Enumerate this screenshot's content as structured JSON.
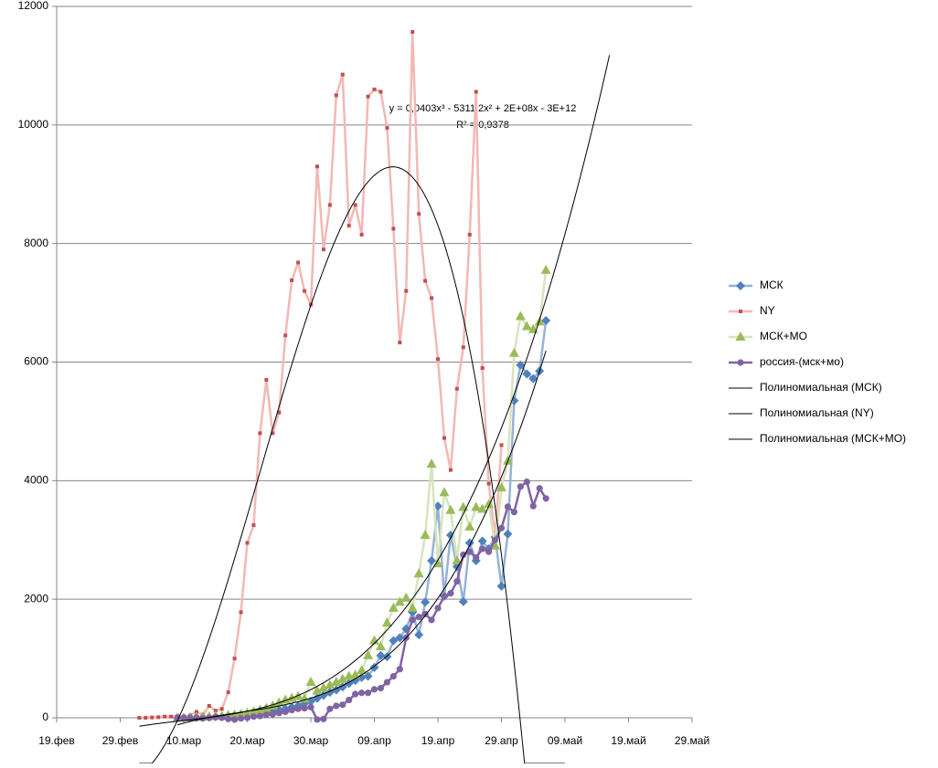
{
  "chart_data": {
    "type": "line",
    "xlim": [
      43880,
      43980
    ],
    "xticks": [
      {
        "value": 43880,
        "label": "19.фев"
      },
      {
        "value": 43890,
        "label": "29.фев"
      },
      {
        "value": 43900,
        "label": "10.мар"
      },
      {
        "value": 43910,
        "label": "20.мар"
      },
      {
        "value": 43920,
        "label": "30.мар"
      },
      {
        "value": 43930,
        "label": "09.апр"
      },
      {
        "value": 43940,
        "label": "19.апр"
      },
      {
        "value": 43950,
        "label": "29.апр"
      },
      {
        "value": 43960,
        "label": "09.май"
      },
      {
        "value": 43970,
        "label": "19.май"
      },
      {
        "value": 43980,
        "label": "29.май"
      }
    ],
    "ylim": [
      0,
      12000
    ],
    "yticks": [
      0,
      2000,
      4000,
      6000,
      8000,
      10000,
      12000
    ],
    "grid": true,
    "legend": "right",
    "annotations": [
      "y = 0,0403x³  - 5311,2x²  + 2E+08x  - 3E+12",
      "R² = 0,9378"
    ],
    "series": [
      {
        "name": "МСК",
        "color": "#4f81bd",
        "line_color": "#95b3d7",
        "marker": "diamond",
        "trendline": {
          "name": "Полиномиальная (МСК)",
          "order": 3,
          "backward": 0,
          "forward": 0
        },
        "x": [
          43899,
          43900,
          43901,
          43902,
          43903,
          43904,
          43905,
          43906,
          43907,
          43908,
          43909,
          43910,
          43911,
          43912,
          43913,
          43914,
          43915,
          43916,
          43917,
          43918,
          43919,
          43920,
          43921,
          43922,
          43923,
          43924,
          43925,
          43926,
          43927,
          43928,
          43929,
          43930,
          43931,
          43932,
          43933,
          43934,
          43935,
          43936,
          43937,
          43938,
          43939,
          43940,
          43941,
          43942,
          43943,
          43944,
          43945,
          43946,
          43947,
          43948,
          43949,
          43950,
          43951,
          43952,
          43953,
          43954,
          43955,
          43956,
          43957
        ],
        "values": [
          0,
          0,
          0,
          5,
          10,
          10,
          20,
          20,
          30,
          30,
          40,
          50,
          60,
          80,
          100,
          110,
          130,
          150,
          180,
          200,
          240,
          280,
          330,
          380,
          430,
          470,
          520,
          580,
          630,
          680,
          700,
          850,
          1050,
          1030,
          1300,
          1350,
          1500,
          1780,
          1400,
          1950,
          2650,
          3570,
          2050,
          3080,
          2550,
          1960,
          2950,
          2650,
          2980,
          2850,
          3050,
          2220,
          3100,
          5350,
          5950,
          5800,
          5720,
          5850,
          6700
        ]
      },
      {
        "name": "NY",
        "color": "#c0504d",
        "line_color": "#f2b8b5",
        "marker": "square",
        "trendline": {
          "name": "Полиномиальная (NY)",
          "order": 3,
          "backward": 0,
          "forward": 10
        },
        "x": [
          43893,
          43894,
          43895,
          43896,
          43897,
          43898,
          43899,
          43900,
          43901,
          43902,
          43903,
          43904,
          43905,
          43906,
          43907,
          43908,
          43909,
          43910,
          43911,
          43912,
          43913,
          43914,
          43915,
          43916,
          43917,
          43918,
          43919,
          43920,
          43921,
          43922,
          43923,
          43924,
          43925,
          43926,
          43927,
          43928,
          43929,
          43930,
          43931,
          43932,
          43933,
          43934,
          43935,
          43936,
          43937,
          43938,
          43939,
          43940,
          43941,
          43942,
          43943,
          43944,
          43945,
          43946,
          43947,
          43948,
          43949,
          43950
        ],
        "values": [
          0,
          0,
          5,
          10,
          20,
          20,
          30,
          20,
          40,
          100,
          50,
          200,
          120,
          150,
          430,
          1000,
          1780,
          2950,
          3250,
          4800,
          5700,
          4800,
          5150,
          6450,
          7380,
          7680,
          7200,
          6970,
          9300,
          7900,
          8650,
          10500,
          10850,
          8300,
          8650,
          8150,
          10480,
          10600,
          10560,
          9950,
          8250,
          6330,
          7200,
          11570,
          8500,
          7370,
          7080,
          6050,
          4720,
          4180,
          5550,
          6250,
          8150,
          10560,
          5900,
          3950,
          3050,
          4600
        ]
      },
      {
        "name": "МСК+МО",
        "color": "#9bbb59",
        "line_color": "#d7e4bd",
        "marker": "triangle",
        "trendline": {
          "name": "Полиномиальная (МСК+МО)",
          "order": 3,
          "backward": 6,
          "forward": 10
        },
        "x": [
          43899,
          43900,
          43901,
          43902,
          43903,
          43904,
          43905,
          43906,
          43907,
          43908,
          43909,
          43910,
          43911,
          43912,
          43913,
          43914,
          43915,
          43916,
          43917,
          43918,
          43919,
          43920,
          43921,
          43922,
          43923,
          43924,
          43925,
          43926,
          43927,
          43928,
          43929,
          43930,
          43931,
          43932,
          43933,
          43934,
          43935,
          43936,
          43937,
          43938,
          43939,
          43940,
          43941,
          43942,
          43943,
          43944,
          43945,
          43946,
          43947,
          43948,
          43949,
          43950,
          43951,
          43952,
          43953,
          43954,
          43955,
          43956,
          43957
        ],
        "values": [
          0,
          0,
          5,
          10,
          15,
          20,
          25,
          30,
          40,
          50,
          60,
          80,
          100,
          130,
          160,
          200,
          250,
          300,
          330,
          360,
          320,
          600,
          450,
          500,
          550,
          600,
          650,
          700,
          720,
          800,
          1050,
          1300,
          1200,
          1600,
          1850,
          1950,
          2020,
          1850,
          2430,
          3080,
          4280,
          2600,
          3800,
          3500,
          2650,
          3550,
          3220,
          3550,
          3520,
          3600,
          2900,
          3880,
          4330,
          6150,
          6770,
          6600,
          6550,
          6680,
          7550
        ]
      },
      {
        "name": "россия-(мск+мо)",
        "color": "#8064a2",
        "line_color": "#8064a2",
        "marker": "circle",
        "x": [
          43899,
          43900,
          43901,
          43902,
          43903,
          43904,
          43905,
          43906,
          43907,
          43908,
          43909,
          43910,
          43911,
          43912,
          43913,
          43914,
          43915,
          43916,
          43917,
          43918,
          43919,
          43920,
          43921,
          43922,
          43923,
          43924,
          43925,
          43926,
          43927,
          43928,
          43929,
          43930,
          43931,
          43932,
          43933,
          43934,
          43935,
          43936,
          43937,
          43938,
          43939,
          43940,
          43941,
          43942,
          43943,
          43944,
          43945,
          43946,
          43947,
          43948,
          43949,
          43950,
          43951,
          43952,
          43953,
          43954,
          43955,
          43956,
          43957
        ],
        "values": [
          0,
          0,
          0,
          0,
          -10,
          0,
          10,
          0,
          -20,
          -30,
          -10,
          0,
          20,
          30,
          50,
          60,
          80,
          100,
          130,
          150,
          160,
          180,
          -30,
          -20,
          150,
          200,
          220,
          300,
          400,
          420,
          420,
          480,
          500,
          600,
          700,
          820,
          1350,
          1650,
          1700,
          1750,
          1650,
          1850,
          2050,
          2100,
          2300,
          2750,
          2800,
          2700,
          2850,
          2800,
          3000,
          3200,
          3560,
          3470,
          3900,
          3980,
          3570,
          3870,
          3700
        ]
      }
    ]
  }
}
